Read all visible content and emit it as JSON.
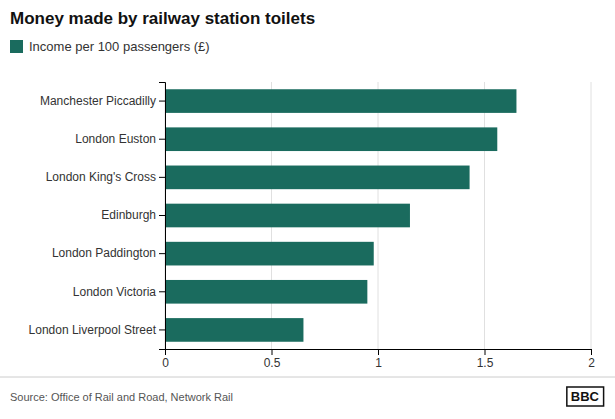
{
  "chart_data": {
    "type": "bar",
    "orientation": "horizontal",
    "title": "Money made by railway station toilets",
    "categories": [
      "London Liverpool Street",
      "London Victoria",
      "London Paddington",
      "Edinburgh",
      "London King's Cross",
      "London Euston",
      "Manchester Piccadilly"
    ],
    "series": [
      {
        "name": "Income per 100 passengers (£)",
        "color": "#1a6b5e",
        "values": [
          0.65,
          0.95,
          0.98,
          1.15,
          1.43,
          1.56,
          1.65
        ]
      }
    ],
    "xlim": [
      0,
      2
    ],
    "xticks": [
      0,
      0.5,
      1,
      1.5,
      2
    ],
    "grid": true,
    "legend": "top-left",
    "annotations": [
      "Source: Office of Rail and Road, Network Rail",
      "BBC"
    ]
  }
}
